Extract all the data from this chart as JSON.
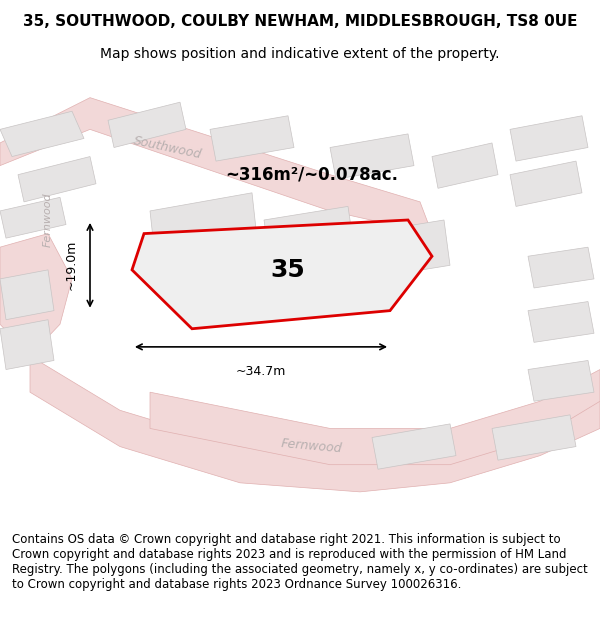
{
  "title_line1": "35, SOUTHWOOD, COULBY NEWHAM, MIDDLESBROUGH, TS8 0UE",
  "title_line2": "Map shows position and indicative extent of the property.",
  "footer_text": "Contains OS data © Crown copyright and database right 2021. This information is subject to Crown copyright and database rights 2023 and is reproduced with the permission of HM Land Registry. The polygons (including the associated geometry, namely x, y co-ordinates) are subject to Crown copyright and database rights 2023 Ordnance Survey 100026316.",
  "area_label": "~316m²/~0.078ac.",
  "number_label": "35",
  "width_label": "~34.7m",
  "height_label": "~19.0m",
  "bg_color": "#f5f5f5",
  "map_bg": "#f0efef",
  "road_color": "#e8c8c8",
  "building_fill": "#e8e8e8",
  "building_edge": "#cccccc",
  "plot_fill": "#f0efef",
  "plot_edge": "#cc0000",
  "road_fill": "#f5e8e8",
  "street_text_color": "#aaaaaa",
  "title_fontsize": 11,
  "subtitle_fontsize": 10,
  "footer_fontsize": 8.5,
  "map_xlim": [
    0,
    1
  ],
  "map_ylim": [
    0,
    1
  ]
}
